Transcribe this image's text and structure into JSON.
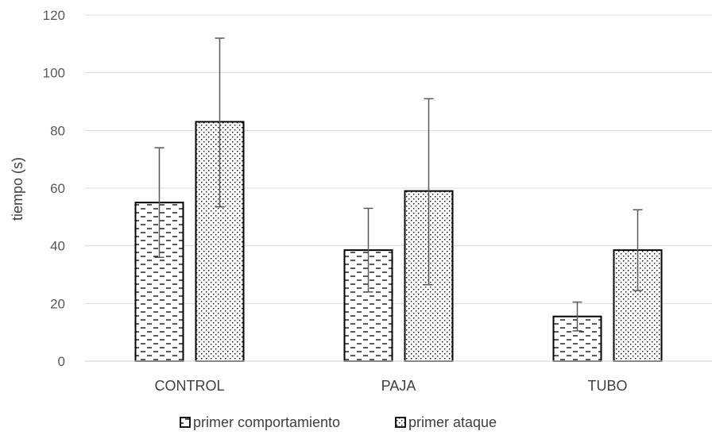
{
  "chart_data": {
    "type": "bar",
    "title": "",
    "xlabel": "",
    "ylabel": "tiempo (s)",
    "ylim": [
      0,
      120
    ],
    "yticks": [
      0,
      20,
      40,
      60,
      80,
      100,
      120
    ],
    "grid": true,
    "legend_position": "bottom",
    "categories": [
      "CONTROL",
      "PAJA",
      "TUBO"
    ],
    "series": [
      {
        "name": "primer comportamiento",
        "pattern": "dashes",
        "values": [
          55,
          38.5,
          15.5
        ],
        "error_low": [
          36,
          24,
          10.5
        ],
        "error_high": [
          74,
          53,
          20.5
        ]
      },
      {
        "name": "primer ataque",
        "pattern": "dots",
        "values": [
          83,
          59,
          38.5
        ],
        "error_low": [
          53.5,
          26.5,
          24.5
        ],
        "error_high": [
          112,
          91,
          52.5
        ]
      }
    ],
    "colors": {
      "bar_outline": "#000000",
      "pattern": "#000000",
      "gridline": "#d9d9d9",
      "error_bar": "#595959",
      "text": "#595959"
    }
  }
}
